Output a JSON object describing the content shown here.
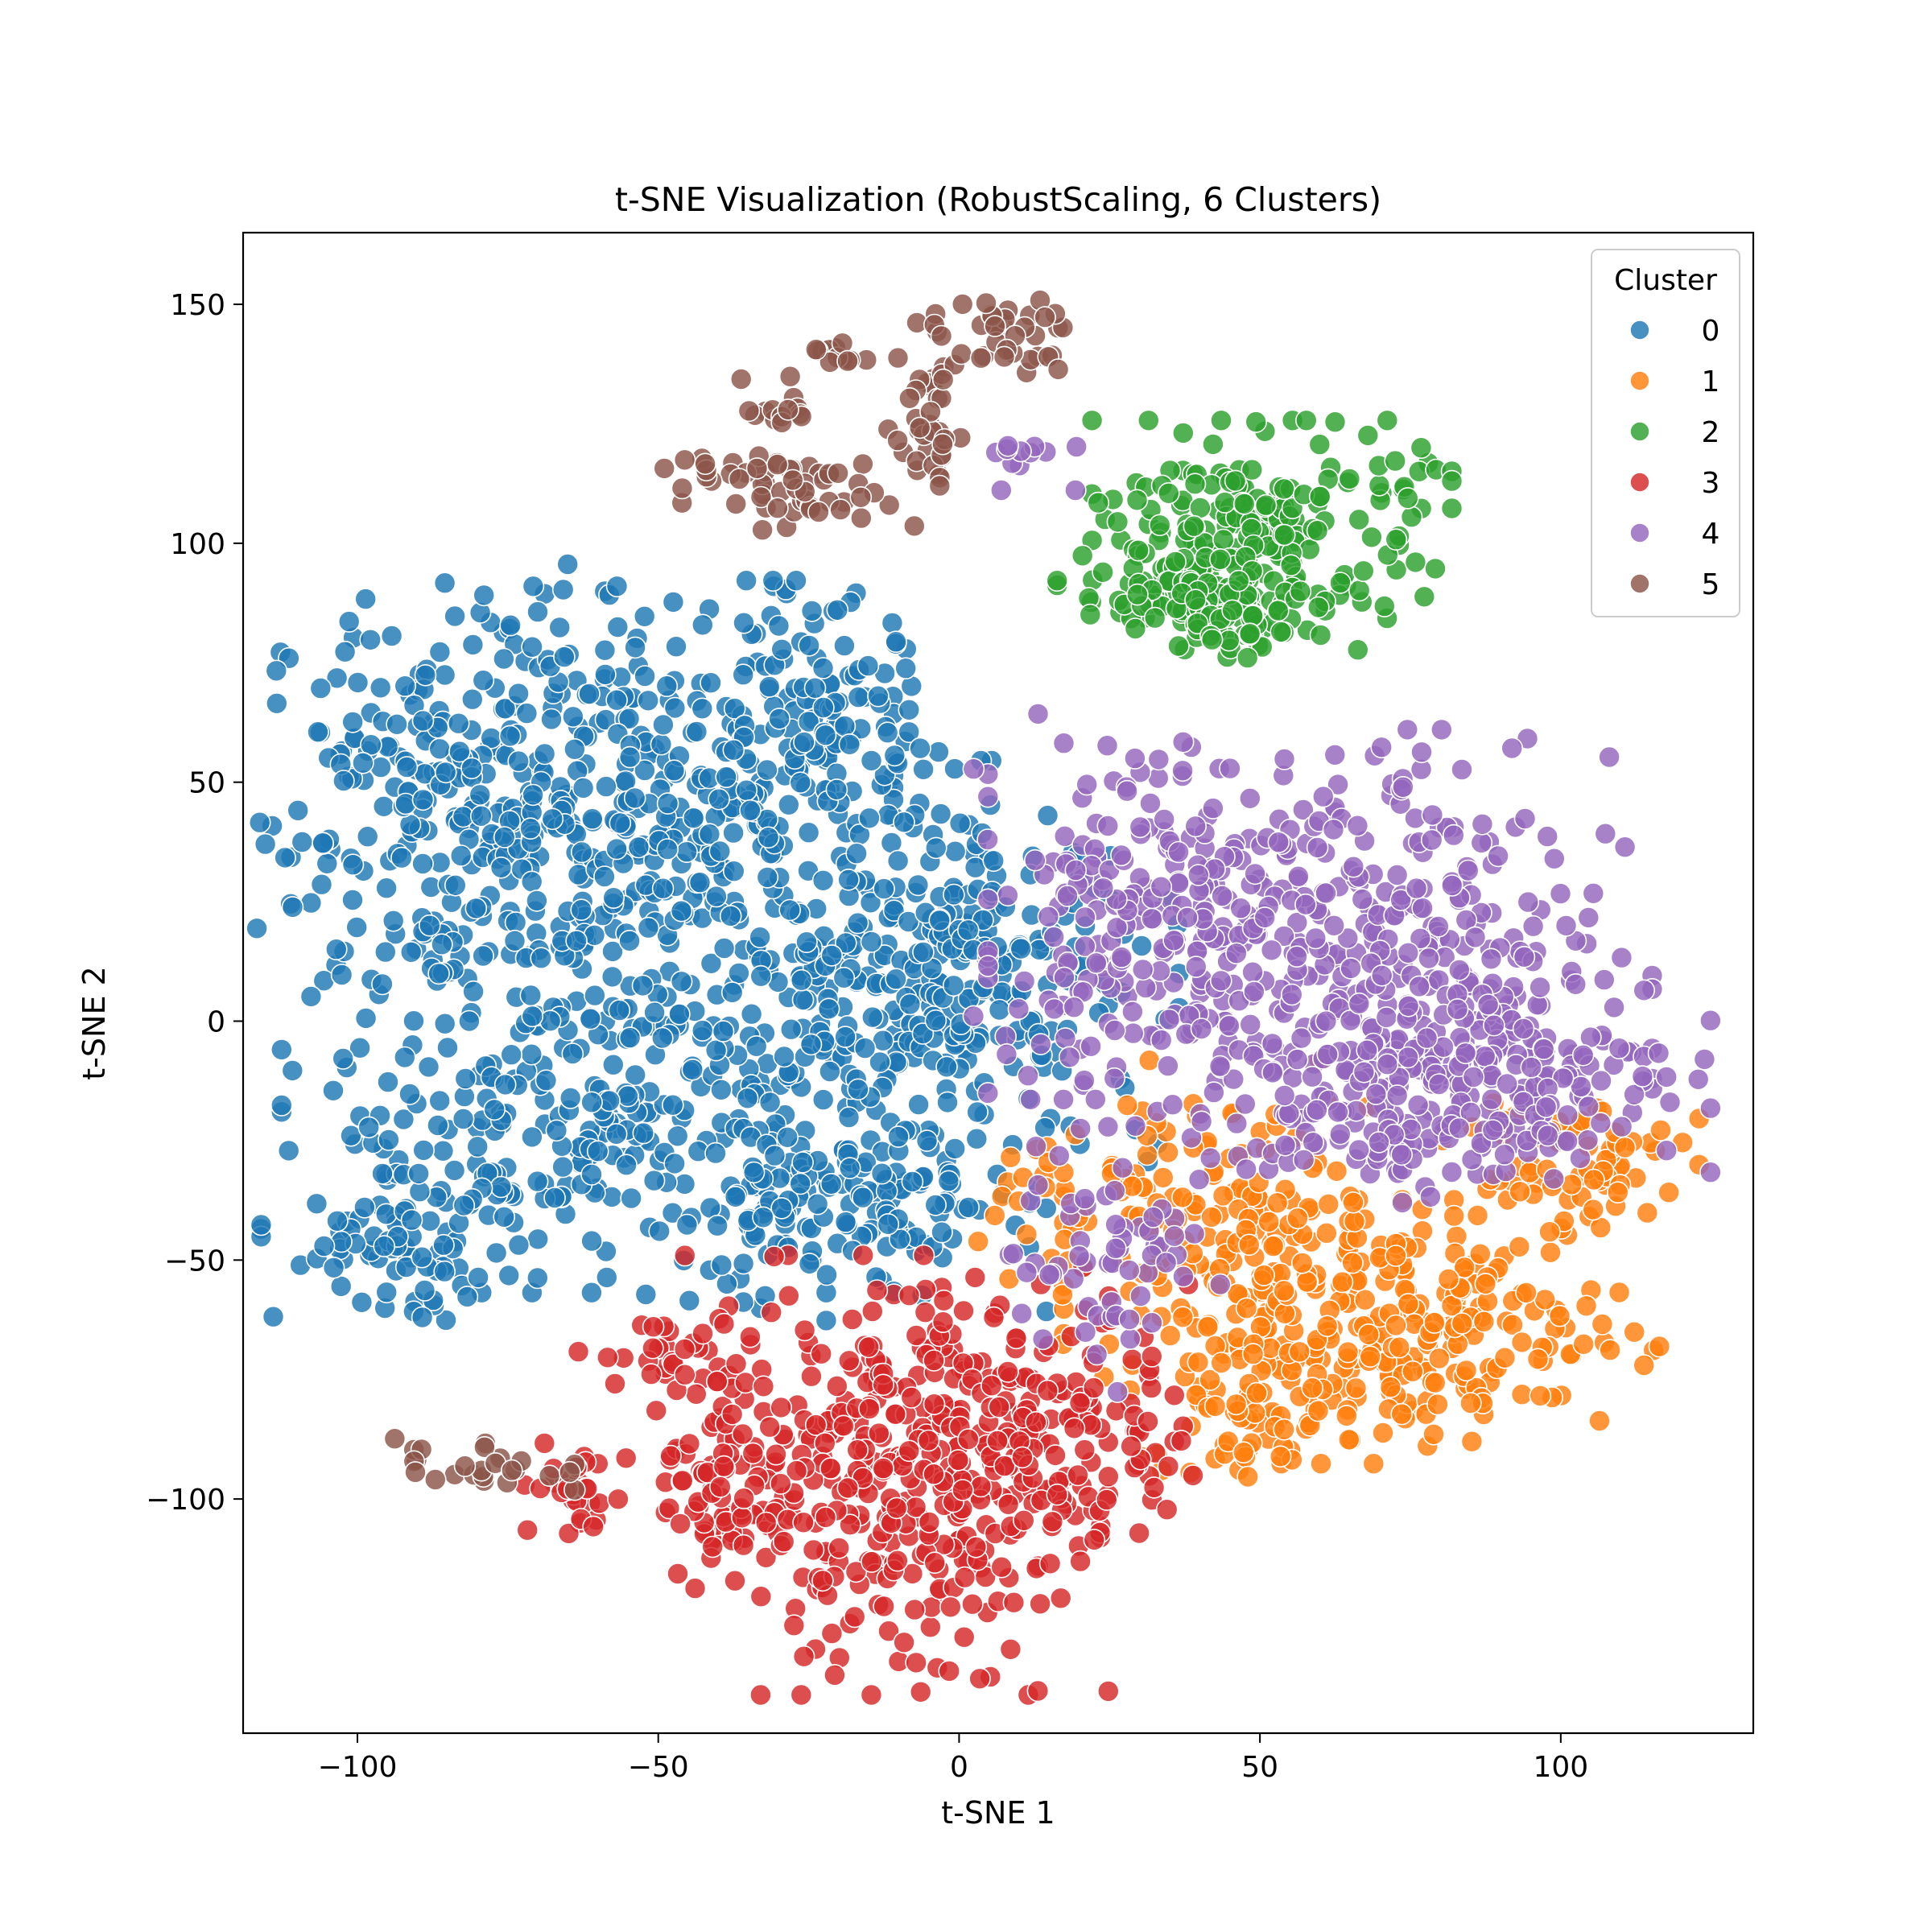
{
  "chart_data": {
    "type": "scatter",
    "title": "t-SNE Visualization (RobustScaling, 6 Clusters)",
    "xlabel": "t-SNE 1",
    "ylabel": "t-SNE 2",
    "xlim": [
      -119,
      132
    ],
    "ylim": [
      -149,
      165
    ],
    "xticks": [
      -100,
      -50,
      0,
      50,
      100
    ],
    "yticks": [
      -100,
      -50,
      0,
      50,
      100,
      150
    ],
    "xtick_labels": [
      "−100",
      "−50",
      "0",
      "50",
      "100"
    ],
    "ytick_labels": [
      "−100",
      "−50",
      "0",
      "50",
      "100",
      "150"
    ],
    "grid": false,
    "legend": {
      "title": "Cluster",
      "placement": "top-right",
      "entries": [
        "0",
        "1",
        "2",
        "3",
        "4",
        "5"
      ]
    },
    "colors": [
      "#1f77b4",
      "#ff7f0e",
      "#2ca02c",
      "#d62728",
      "#9467bd",
      "#8c564b"
    ],
    "series": [
      {
        "name": "0",
        "regions": [
          {
            "cx": -82,
            "cy": 45,
            "sx": 17,
            "sy": 22,
            "n": 300
          },
          {
            "cx": -50,
            "cy": 45,
            "sx": 17,
            "sy": 20,
            "n": 260
          },
          {
            "cx": -22,
            "cy": 60,
            "sx": 9,
            "sy": 14,
            "n": 110
          },
          {
            "cx": -10,
            "cy": 5,
            "sx": 22,
            "sy": 17,
            "n": 300
          },
          {
            "cx": -62,
            "cy": -20,
            "sx": 22,
            "sy": 16,
            "n": 260
          },
          {
            "cx": -93,
            "cy": -48,
            "sx": 10,
            "sy": 7,
            "n": 80
          },
          {
            "cx": -20,
            "cy": -40,
            "sx": 15,
            "sy": 10,
            "n": 150
          },
          {
            "cx": 3,
            "cy": 20,
            "sx": 8,
            "sy": 15,
            "n": 80
          }
        ]
      },
      {
        "name": "1",
        "regions": [
          {
            "cx": 75,
            "cy": -65,
            "sx": 18,
            "sy": 12,
            "n": 260
          },
          {
            "cx": 45,
            "cy": -45,
            "sx": 12,
            "sy": 16,
            "n": 160
          },
          {
            "cx": 100,
            "cy": -30,
            "sx": 10,
            "sy": 8,
            "n": 70
          },
          {
            "cx": 45,
            "cy": -85,
            "sx": 8,
            "sy": 6,
            "n": 40
          },
          {
            "cx": 20,
            "cy": -40,
            "sx": 8,
            "sy": 12,
            "n": 40
          }
        ]
      },
      {
        "name": "2",
        "regions": [
          {
            "cx": 52,
            "cy": 105,
            "sx": 13,
            "sy": 9,
            "n": 180
          },
          {
            "cx": 37,
            "cy": 90,
            "sx": 9,
            "sy": 6,
            "n": 90
          },
          {
            "cx": 50,
            "cy": 85,
            "sx": 9,
            "sy": 4,
            "n": 60
          }
        ]
      },
      {
        "name": "3",
        "regions": [
          {
            "cx": -12,
            "cy": -95,
            "sx": 16,
            "sy": 20,
            "n": 360
          },
          {
            "cx": 15,
            "cy": -85,
            "sx": 12,
            "sy": 13,
            "n": 140
          },
          {
            "cx": -38,
            "cy": -95,
            "sx": 6,
            "sy": 9,
            "n": 60
          },
          {
            "cx": -63,
            "cy": -98,
            "sx": 4,
            "sy": 5,
            "n": 30
          },
          {
            "cx": -48,
            "cy": -70,
            "sx": 8,
            "sy": 5,
            "n": 30
          }
        ]
      },
      {
        "name": "4",
        "regions": [
          {
            "cx": 60,
            "cy": 15,
            "sx": 24,
            "sy": 20,
            "n": 420
          },
          {
            "cx": 95,
            "cy": -10,
            "sx": 13,
            "sy": 10,
            "n": 140
          },
          {
            "cx": 30,
            "cy": 25,
            "sx": 12,
            "sy": 18,
            "n": 120
          },
          {
            "cx": 70,
            "cy": -20,
            "sx": 15,
            "sy": 8,
            "n": 120
          },
          {
            "cx": 25,
            "cy": -50,
            "sx": 8,
            "sy": 12,
            "n": 60
          },
          {
            "cx": 8,
            "cy": 118,
            "sx": 5,
            "sy": 3,
            "n": 12
          }
        ]
      },
      {
        "name": "5",
        "regions": [
          {
            "cx": -30,
            "cy": 112,
            "sx": 8,
            "sy": 4,
            "n": 50
          },
          {
            "cx": -5,
            "cy": 125,
            "sx": 3,
            "sy": 10,
            "n": 40
          },
          {
            "cx": 7,
            "cy": 143,
            "sx": 6,
            "sy": 4,
            "n": 35
          },
          {
            "cx": -20,
            "cy": 140,
            "sx": 2,
            "sy": 2,
            "n": 12
          },
          {
            "cx": -30,
            "cy": 128,
            "sx": 3,
            "sy": 3,
            "n": 14
          },
          {
            "cx": -45,
            "cy": 116,
            "sx": 2,
            "sy": 2,
            "n": 6
          },
          {
            "cx": -80,
            "cy": -93,
            "sx": 7,
            "sy": 3,
            "n": 25
          }
        ]
      }
    ]
  }
}
